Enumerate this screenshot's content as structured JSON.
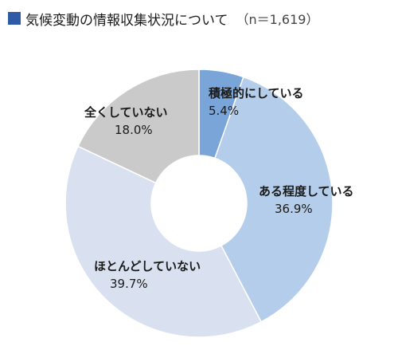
{
  "title": {
    "text": "気候変動の情報収集状況について",
    "sample": "（n＝1,619）"
  },
  "colors": {
    "title_marker": "#2e5aa6"
  },
  "chart_data": {
    "type": "pie",
    "title": "気候変動の情報収集状況について",
    "subtitle": "（n＝1,619）",
    "donut": true,
    "unit": "%",
    "slices": [
      {
        "label": "積極的にしている",
        "value": 5.4,
        "display": "5.4%",
        "color": "#7aa5d8"
      },
      {
        "label": "ある程度している",
        "value": 36.9,
        "display": "36.9%",
        "color": "#b3cdea"
      },
      {
        "label": "ほとんどしていない",
        "value": 39.7,
        "display": "39.7%",
        "color": "#d9e1f0"
      },
      {
        "label": "全くしていない",
        "value": 18.0,
        "display": "18.0%",
        "color": "#cacaca"
      }
    ]
  }
}
